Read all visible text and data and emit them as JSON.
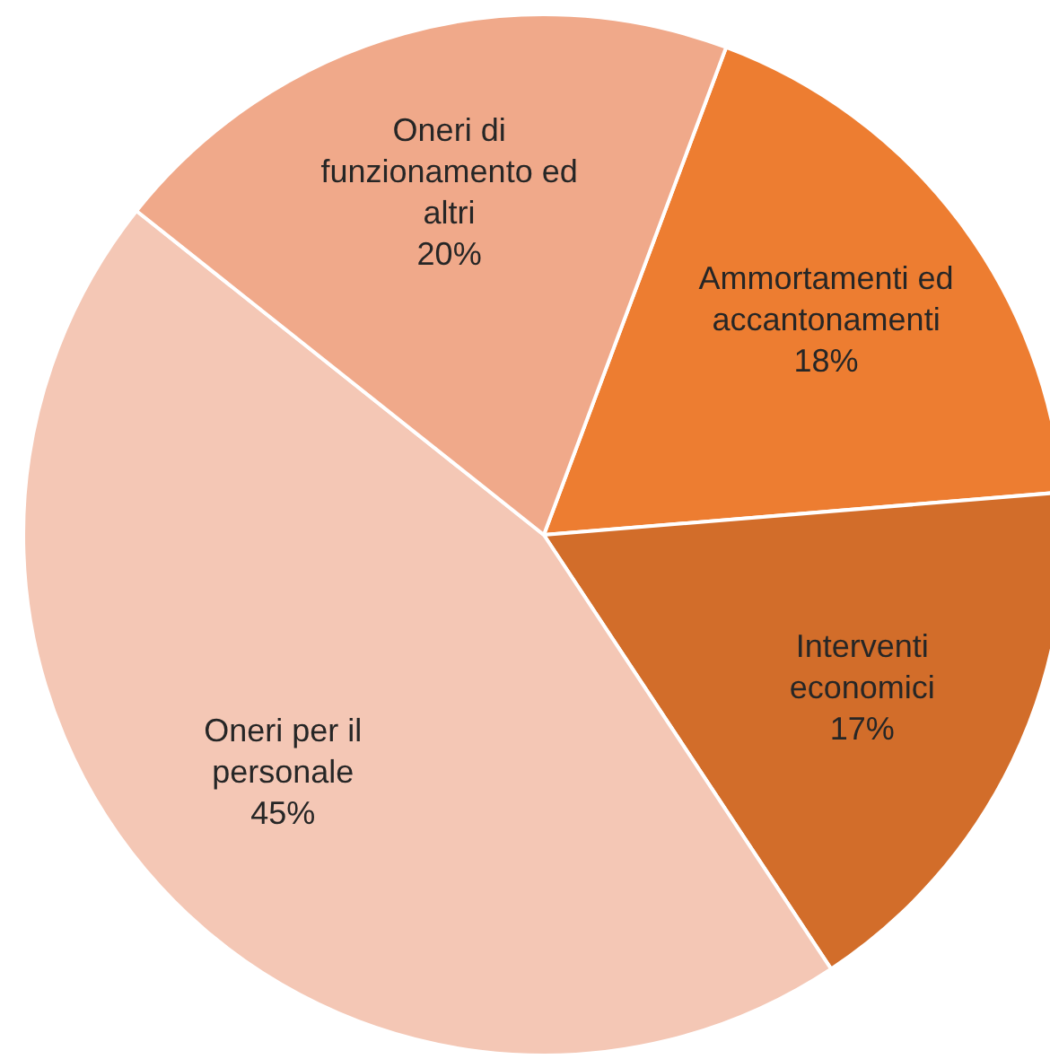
{
  "chart_data": {
    "type": "pie",
    "categories": [
      "Ammortamenti ed accantonamenti",
      "Interventi economici",
      "Oneri per il personale",
      "Oneri di funzionamento ed altri"
    ],
    "values": [
      18,
      17,
      45,
      20
    ],
    "value_labels": [
      "18%",
      "17%",
      "45%",
      "20%"
    ],
    "colors": [
      "#ed7d31",
      "#d26d2a",
      "#f4c7b5",
      "#f0a98a"
    ]
  }
}
